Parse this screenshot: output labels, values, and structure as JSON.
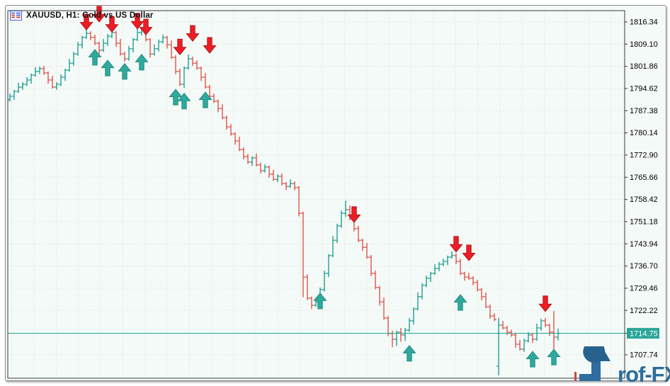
{
  "window": {
    "title": "XAUUSD, H1: Gold vs US Dollar"
  },
  "price_scale": {
    "labels": [
      "1816.34",
      "1809.10",
      "1801.86",
      "1794.62",
      "1787.38",
      "1780.14",
      "1772.90",
      "1765.66",
      "1758.42",
      "1751.18",
      "1743.94",
      "1736.70",
      "1729.46",
      "1722.22",
      "1707.74"
    ],
    "current_price_label": "1714.75"
  },
  "watermark": {
    "brand": "Prof-FX",
    "display_text_after_p_glyph": "rof-FX"
  },
  "colors": {
    "background": "#f4faf7",
    "bar_up": "#22a093",
    "bar_down": "#e2544e",
    "arrow_buy": "#2fa99e",
    "arrow_buy_edge": "#1d8a80",
    "arrow_sell": "#ee1c25",
    "arrow_sell_edge": "#b3151c",
    "grid": "#e7ddd8",
    "axis": "#3a3a3a",
    "text": "#000000",
    "current_price_line": "#17a38f",
    "price_box_bg": "#2aa598",
    "price_box_text": "#ffffff",
    "logo_blue": "#2e6d9d",
    "logo_dark_blue": "#27628f",
    "logo_red": "#c44a3f"
  },
  "chart_data": {
    "type": "ohlc-bar",
    "symbol": "XAUUSD",
    "timeframe": "H1",
    "title": "XAUUSD, H1: Gold vs US Dollar",
    "ylim": [
      1700.1,
      1820.0
    ],
    "grid": true,
    "legend_position": "none",
    "current_price": 1714.75,
    "y_ticks": [
      1816.34,
      1809.1,
      1801.86,
      1794.62,
      1787.38,
      1780.14,
      1772.9,
      1765.66,
      1758.42,
      1751.18,
      1743.94,
      1736.7,
      1729.46,
      1722.22,
      1707.74
    ],
    "bars": [
      [
        1791.0,
        1793.0,
        1790.4,
        1792.1
      ],
      [
        1792.1,
        1794.2,
        1790.9,
        1793.7
      ],
      [
        1793.7,
        1796.5,
        1793.2,
        1795.1
      ],
      [
        1795.1,
        1796.7,
        1794.2,
        1796.0
      ],
      [
        1796.0,
        1798.3,
        1795.4,
        1797.4
      ],
      [
        1797.4,
        1799.5,
        1796.2,
        1799.0
      ],
      [
        1799.0,
        1801.6,
        1798.5,
        1800.2
      ],
      [
        1800.2,
        1801.8,
        1799.3,
        1801.1
      ],
      [
        1801.1,
        1802.0,
        1799.1,
        1799.7
      ],
      [
        1799.7,
        1800.2,
        1796.2,
        1797.4
      ],
      [
        1797.4,
        1798.8,
        1794.6,
        1795.1
      ],
      [
        1795.1,
        1796.7,
        1794.2,
        1796.0
      ],
      [
        1796.0,
        1799.2,
        1795.4,
        1798.3
      ],
      [
        1798.3,
        1801.1,
        1797.1,
        1800.6
      ],
      [
        1800.6,
        1804.3,
        1800.1,
        1802.9
      ],
      [
        1802.9,
        1806.6,
        1802.0,
        1805.9
      ],
      [
        1805.9,
        1809.8,
        1805.3,
        1808.9
      ],
      [
        1808.9,
        1811.8,
        1807.7,
        1811.3
      ],
      [
        1811.3,
        1814.0,
        1810.8,
        1812.6
      ],
      [
        1812.6,
        1813.3,
        1810.4,
        1811.3
      ],
      [
        1811.3,
        1812.2,
        1808.8,
        1809.4
      ],
      [
        1809.4,
        1809.9,
        1805.9,
        1807.1
      ],
      [
        1807.1,
        1810.8,
        1806.6,
        1809.4
      ],
      [
        1809.4,
        1812.4,
        1808.5,
        1811.7
      ],
      [
        1811.7,
        1813.8,
        1811.1,
        1812.9
      ],
      [
        1812.9,
        1813.4,
        1808.2,
        1809.4
      ],
      [
        1809.4,
        1810.8,
        1805.4,
        1805.9
      ],
      [
        1805.9,
        1806.6,
        1803.4,
        1804.3
      ],
      [
        1804.3,
        1808.5,
        1803.7,
        1807.6
      ],
      [
        1807.6,
        1811.1,
        1806.4,
        1810.6
      ],
      [
        1810.6,
        1814.3,
        1810.1,
        1812.9
      ],
      [
        1812.9,
        1814.3,
        1812.0,
        1813.6
      ],
      [
        1813.6,
        1814.5,
        1810.0,
        1810.6
      ],
      [
        1810.6,
        1811.1,
        1804.7,
        1805.9
      ],
      [
        1805.9,
        1809.0,
        1805.4,
        1807.6
      ],
      [
        1807.6,
        1810.6,
        1806.7,
        1809.9
      ],
      [
        1809.9,
        1812.2,
        1809.3,
        1811.3
      ],
      [
        1811.3,
        1811.8,
        1807.7,
        1808.9
      ],
      [
        1808.9,
        1810.3,
        1804.3,
        1804.8
      ],
      [
        1804.8,
        1805.5,
        1799.3,
        1800.2
      ],
      [
        1800.2,
        1801.1,
        1795.4,
        1796.0
      ],
      [
        1796.0,
        1801.8,
        1794.8,
        1801.3
      ],
      [
        1801.3,
        1805.7,
        1800.8,
        1804.3
      ],
      [
        1804.3,
        1805.0,
        1802.0,
        1802.9
      ],
      [
        1802.9,
        1803.8,
        1800.7,
        1801.3
      ],
      [
        1801.3,
        1801.8,
        1797.1,
        1798.3
      ],
      [
        1798.3,
        1799.7,
        1794.6,
        1795.1
      ],
      [
        1795.1,
        1795.8,
        1791.2,
        1792.1
      ],
      [
        1792.1,
        1793.0,
        1789.9,
        1790.5
      ],
      [
        1790.5,
        1791.0,
        1786.9,
        1788.1
      ],
      [
        1788.1,
        1789.5,
        1784.6,
        1785.1
      ],
      [
        1785.1,
        1785.8,
        1781.2,
        1782.1
      ],
      [
        1782.1,
        1783.0,
        1779.2,
        1779.8
      ],
      [
        1779.8,
        1780.3,
        1776.3,
        1777.5
      ],
      [
        1777.5,
        1778.9,
        1774.2,
        1774.7
      ],
      [
        1774.7,
        1775.4,
        1771.5,
        1772.4
      ],
      [
        1772.4,
        1773.3,
        1770.0,
        1770.6
      ],
      [
        1770.6,
        1772.5,
        1769.4,
        1772.0
      ],
      [
        1772.0,
        1773.4,
        1769.2,
        1769.7
      ],
      [
        1769.7,
        1770.4,
        1766.9,
        1767.8
      ],
      [
        1767.8,
        1769.9,
        1767.2,
        1769.0
      ],
      [
        1769.0,
        1769.5,
        1765.5,
        1766.7
      ],
      [
        1766.7,
        1768.1,
        1764.5,
        1765.0
      ],
      [
        1765.0,
        1766.7,
        1764.1,
        1766.0
      ],
      [
        1766.0,
        1766.9,
        1763.0,
        1763.6
      ],
      [
        1763.6,
        1764.1,
        1761.5,
        1762.7
      ],
      [
        1762.7,
        1765.0,
        1762.2,
        1763.6
      ],
      [
        1763.6,
        1764.3,
        1761.4,
        1762.3
      ],
      [
        1762.3,
        1762.8,
        1752.9,
        1753.9
      ],
      [
        1753.9,
        1754.4,
        1726.5,
        1733.1
      ],
      [
        1733.1,
        1734.0,
        1725.6,
        1726.2
      ],
      [
        1726.2,
        1726.7,
        1722.7,
        1723.9
      ],
      [
        1723.9,
        1726.4,
        1723.4,
        1725.0
      ],
      [
        1725.0,
        1729.7,
        1724.1,
        1729.0
      ],
      [
        1729.0,
        1735.2,
        1728.4,
        1734.3
      ],
      [
        1734.3,
        1740.6,
        1733.1,
        1740.1
      ],
      [
        1740.1,
        1746.5,
        1739.6,
        1745.1
      ],
      [
        1745.1,
        1750.5,
        1744.2,
        1749.8
      ],
      [
        1749.8,
        1754.8,
        1749.2,
        1753.9
      ],
      [
        1753.9,
        1758.0,
        1752.7,
        1755.1
      ],
      [
        1755.1,
        1756.5,
        1751.6,
        1752.1
      ],
      [
        1752.1,
        1752.8,
        1748.0,
        1748.9
      ],
      [
        1748.9,
        1749.8,
        1744.5,
        1745.1
      ],
      [
        1745.1,
        1745.6,
        1741.6,
        1742.8
      ],
      [
        1742.8,
        1744.2,
        1739.1,
        1739.6
      ],
      [
        1739.6,
        1740.3,
        1733.4,
        1734.3
      ],
      [
        1734.3,
        1735.2,
        1729.1,
        1729.7
      ],
      [
        1729.7,
        1730.2,
        1723.8,
        1725.0
      ],
      [
        1725.0,
        1726.4,
        1719.2,
        1719.7
      ],
      [
        1719.7,
        1720.4,
        1713.8,
        1714.7
      ],
      [
        1714.7,
        1715.6,
        1710.2,
        1712.8
      ],
      [
        1712.8,
        1715.6,
        1710.6,
        1715.1
      ],
      [
        1715.1,
        1716.5,
        1712.0,
        1714.2
      ],
      [
        1714.2,
        1716.5,
        1712.3,
        1715.8
      ],
      [
        1715.8,
        1719.7,
        1715.2,
        1718.8
      ],
      [
        1718.8,
        1723.2,
        1717.6,
        1722.7
      ],
      [
        1722.7,
        1728.1,
        1722.2,
        1726.7
      ],
      [
        1726.7,
        1731.1,
        1725.8,
        1730.4
      ],
      [
        1730.4,
        1733.6,
        1729.8,
        1732.7
      ],
      [
        1732.7,
        1734.8,
        1731.5,
        1734.3
      ],
      [
        1734.3,
        1737.3,
        1733.8,
        1735.9
      ],
      [
        1735.9,
        1738.0,
        1735.0,
        1737.3
      ],
      [
        1737.3,
        1739.1,
        1736.7,
        1738.2
      ],
      [
        1738.2,
        1740.1,
        1737.0,
        1739.6
      ],
      [
        1739.6,
        1741.5,
        1739.1,
        1740.1
      ],
      [
        1740.1,
        1740.8,
        1737.3,
        1738.2
      ],
      [
        1738.2,
        1739.1,
        1733.7,
        1734.3
      ],
      [
        1734.3,
        1734.8,
        1731.9,
        1733.1
      ],
      [
        1733.1,
        1734.5,
        1732.2,
        1732.7
      ],
      [
        1732.7,
        1733.4,
        1730.4,
        1731.3
      ],
      [
        1731.3,
        1732.2,
        1728.4,
        1729.0
      ],
      [
        1729.0,
        1729.5,
        1725.5,
        1726.7
      ],
      [
        1726.7,
        1728.1,
        1722.9,
        1723.4
      ],
      [
        1723.4,
        1724.1,
        1719.5,
        1720.4
      ],
      [
        1720.4,
        1721.3,
        1718.7,
        1719.3
      ],
      [
        1704.0,
        1719.8,
        1701.0,
        1717.4
      ],
      [
        1717.4,
        1718.8,
        1716.0,
        1716.5
      ],
      [
        1716.5,
        1717.2,
        1714.2,
        1715.1
      ],
      [
        1715.1,
        1716.0,
        1713.6,
        1714.2
      ],
      [
        1714.2,
        1714.7,
        1710.0,
        1711.2
      ],
      [
        1711.2,
        1712.6,
        1709.1,
        1709.6
      ],
      [
        1709.6,
        1713.0,
        1708.7,
        1712.3
      ],
      [
        1712.3,
        1715.1,
        1711.7,
        1714.2
      ],
      [
        1714.2,
        1714.7,
        1711.6,
        1712.8
      ],
      [
        1712.8,
        1717.9,
        1712.3,
        1716.5
      ],
      [
        1716.5,
        1719.5,
        1715.6,
        1718.8
      ],
      [
        1718.8,
        1719.7,
        1716.8,
        1717.4
      ],
      [
        1717.4,
        1717.9,
        1713.9,
        1715.1
      ],
      [
        1715.1,
        1722.0,
        1709.6,
        1713.5
      ],
      [
        1713.5,
        1716.3,
        1712.4,
        1714.75
      ]
    ],
    "signals": {
      "sell": [
        {
          "i": 18,
          "p": 1816.3
        },
        {
          "i": 21,
          "p": 1818.9
        },
        {
          "i": 24,
          "p": 1815.6
        },
        {
          "i": 30,
          "p": 1816.6
        },
        {
          "i": 32,
          "p": 1814.7
        },
        {
          "i": 40,
          "p": 1808.2
        },
        {
          "i": 43,
          "p": 1812.6
        },
        {
          "i": 47,
          "p": 1808.7
        },
        {
          "i": 81,
          "p": 1753.5
        },
        {
          "i": 105,
          "p": 1743.8
        },
        {
          "i": 108,
          "p": 1741.0
        },
        {
          "i": 126,
          "p": 1724.4
        }
      ],
      "buy": [
        {
          "i": 20,
          "p": 1804.8
        },
        {
          "i": 23,
          "p": 1801.3
        },
        {
          "i": 27,
          "p": 1800.2
        },
        {
          "i": 31,
          "p": 1803.2
        },
        {
          "i": 39,
          "p": 1791.8
        },
        {
          "i": 41,
          "p": 1790.5
        },
        {
          "i": 46,
          "p": 1790.9
        },
        {
          "i": 73,
          "p": 1725.3
        },
        {
          "i": 94,
          "p": 1708.2
        },
        {
          "i": 106,
          "p": 1724.8
        },
        {
          "i": 123,
          "p": 1706.3
        },
        {
          "i": 128,
          "p": 1707.0
        }
      ]
    }
  }
}
